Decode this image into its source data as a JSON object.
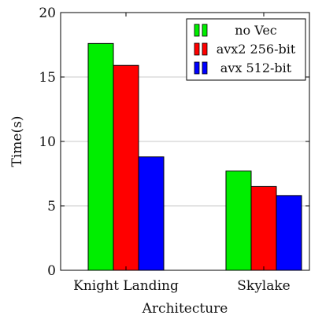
{
  "chart_data": {
    "type": "bar",
    "title": "",
    "xlabel": "Architecture",
    "ylabel": "Time(s)",
    "ylim": [
      0,
      20
    ],
    "yticks": [
      0,
      5,
      10,
      15,
      20
    ],
    "grid": "horizontal",
    "legend_position": "top-right",
    "categories": [
      "Knight Landing",
      "Skylake"
    ],
    "series": [
      {
        "name": "no Vec",
        "values": [
          17.6,
          7.7
        ],
        "color": "#00ee00"
      },
      {
        "name": "avx2 256-bit",
        "values": [
          15.9,
          6.5
        ],
        "color": "#ff0000"
      },
      {
        "name": "avx 512-bit",
        "values": [
          8.8,
          5.8
        ],
        "color": "#0000ff"
      }
    ]
  }
}
